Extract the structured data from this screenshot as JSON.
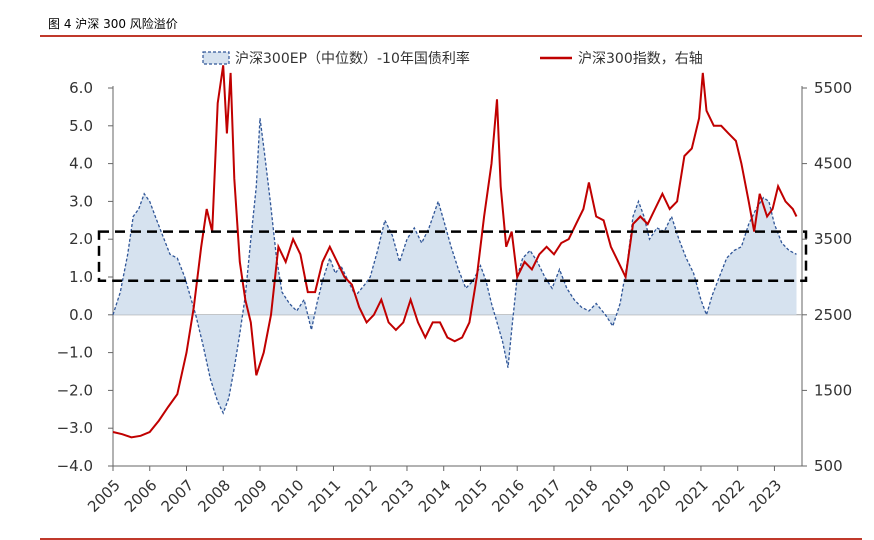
{
  "figure": {
    "title": "图 4 沪深 300 风险溢价"
  },
  "colors": {
    "ep_line": "#2f5597",
    "ep_fill": "#d6e2ef",
    "index_line": "#c00000",
    "rule": "#c0392b",
    "box": "#000000"
  },
  "chart_data": {
    "type": "line",
    "x_ticks": [
      "2005",
      "2006",
      "2007",
      "2008",
      "2009",
      "2010",
      "2011",
      "2012",
      "2013",
      "2014",
      "2015",
      "2016",
      "2017",
      "2018",
      "2019",
      "2020",
      "2021",
      "2022",
      "2023"
    ],
    "y_left": {
      "ticks": [
        "6.0",
        "5.0",
        "4.0",
        "3.0",
        "2.0",
        "1.0",
        "0.0",
        "−1.0",
        "−2.0",
        "−3.0",
        "−4.0"
      ],
      "range": [
        -4,
        6
      ]
    },
    "y_right": {
      "ticks": [
        "5500",
        "4500",
        "3500",
        "2500",
        "1500",
        "500"
      ],
      "range": [
        500,
        5500
      ]
    },
    "grid": false,
    "legend_position": "top",
    "highlight_band": {
      "y_from": 0.9,
      "y_to": 2.2,
      "style": "dashed"
    },
    "series": [
      {
        "name": "沪深300EP（中位数）-10年国债利率",
        "axis": "left",
        "style": "dashed-area",
        "points": [
          [
            2005.0,
            0.0
          ],
          [
            2005.2,
            0.6
          ],
          [
            2005.4,
            1.6
          ],
          [
            2005.55,
            2.6
          ],
          [
            2005.7,
            2.8
          ],
          [
            2005.85,
            3.2
          ],
          [
            2006.0,
            3.0
          ],
          [
            2006.15,
            2.6
          ],
          [
            2006.35,
            2.1
          ],
          [
            2006.55,
            1.6
          ],
          [
            2006.75,
            1.5
          ],
          [
            2006.95,
            1.0
          ],
          [
            2007.1,
            0.5
          ],
          [
            2007.25,
            0.0
          ],
          [
            2007.45,
            -0.8
          ],
          [
            2007.65,
            -1.7
          ],
          [
            2007.85,
            -2.3
          ],
          [
            2008.0,
            -2.6
          ],
          [
            2008.15,
            -2.2
          ],
          [
            2008.3,
            -1.4
          ],
          [
            2008.45,
            -0.5
          ],
          [
            2008.6,
            0.5
          ],
          [
            2008.75,
            2.0
          ],
          [
            2008.9,
            3.4
          ],
          [
            2009.0,
            5.2
          ],
          [
            2009.12,
            4.3
          ],
          [
            2009.28,
            3.0
          ],
          [
            2009.45,
            1.5
          ],
          [
            2009.6,
            0.6
          ],
          [
            2009.8,
            0.3
          ],
          [
            2010.0,
            0.1
          ],
          [
            2010.2,
            0.4
          ],
          [
            2010.4,
            -0.4
          ],
          [
            2010.55,
            0.3
          ],
          [
            2010.7,
            0.9
          ],
          [
            2010.9,
            1.5
          ],
          [
            2011.05,
            1.1
          ],
          [
            2011.2,
            1.3
          ],
          [
            2011.4,
            0.9
          ],
          [
            2011.6,
            0.5
          ],
          [
            2011.85,
            0.8
          ],
          [
            2012.0,
            1.0
          ],
          [
            2012.2,
            1.7
          ],
          [
            2012.4,
            2.5
          ],
          [
            2012.6,
            2.1
          ],
          [
            2012.8,
            1.4
          ],
          [
            2013.0,
            2.0
          ],
          [
            2013.2,
            2.3
          ],
          [
            2013.4,
            1.9
          ],
          [
            2013.6,
            2.3
          ],
          [
            2013.85,
            3.0
          ],
          [
            2014.0,
            2.5
          ],
          [
            2014.2,
            1.8
          ],
          [
            2014.4,
            1.2
          ],
          [
            2014.6,
            0.7
          ],
          [
            2014.8,
            0.9
          ],
          [
            2015.0,
            1.3
          ],
          [
            2015.15,
            0.9
          ],
          [
            2015.3,
            0.3
          ],
          [
            2015.45,
            -0.2
          ],
          [
            2015.6,
            -0.7
          ],
          [
            2015.75,
            -1.4
          ],
          [
            2015.85,
            -0.4
          ],
          [
            2016.0,
            1.0
          ],
          [
            2016.15,
            1.5
          ],
          [
            2016.35,
            1.7
          ],
          [
            2016.55,
            1.4
          ],
          [
            2016.75,
            1.0
          ],
          [
            2016.95,
            0.7
          ],
          [
            2017.15,
            1.2
          ],
          [
            2017.35,
            0.7
          ],
          [
            2017.55,
            0.4
          ],
          [
            2017.75,
            0.2
          ],
          [
            2017.95,
            0.1
          ],
          [
            2018.15,
            0.3
          ],
          [
            2018.4,
            0.0
          ],
          [
            2018.6,
            -0.3
          ],
          [
            2018.8,
            0.3
          ],
          [
            2019.0,
            1.4
          ],
          [
            2019.15,
            2.6
          ],
          [
            2019.3,
            3.0
          ],
          [
            2019.45,
            2.6
          ],
          [
            2019.6,
            2.0
          ],
          [
            2019.8,
            2.3
          ],
          [
            2020.0,
            2.2
          ],
          [
            2020.2,
            2.6
          ],
          [
            2020.4,
            2.0
          ],
          [
            2020.6,
            1.5
          ],
          [
            2020.8,
            1.1
          ],
          [
            2021.0,
            0.4
          ],
          [
            2021.15,
            0.0
          ],
          [
            2021.3,
            0.5
          ],
          [
            2021.5,
            1.0
          ],
          [
            2021.7,
            1.5
          ],
          [
            2021.9,
            1.7
          ],
          [
            2022.1,
            1.8
          ],
          [
            2022.3,
            2.4
          ],
          [
            2022.5,
            2.8
          ],
          [
            2022.7,
            3.1
          ],
          [
            2022.85,
            3.0
          ],
          [
            2023.0,
            2.4
          ],
          [
            2023.2,
            1.9
          ],
          [
            2023.4,
            1.7
          ],
          [
            2023.6,
            1.6
          ]
        ]
      },
      {
        "name": "沪深300指数，右轴",
        "axis": "right",
        "style": "solid",
        "points": [
          [
            2005.0,
            950
          ],
          [
            2005.25,
            920
          ],
          [
            2005.5,
            880
          ],
          [
            2005.75,
            900
          ],
          [
            2006.0,
            950
          ],
          [
            2006.25,
            1100
          ],
          [
            2006.5,
            1280
          ],
          [
            2006.75,
            1450
          ],
          [
            2007.0,
            2000
          ],
          [
            2007.2,
            2600
          ],
          [
            2007.4,
            3400
          ],
          [
            2007.55,
            3900
          ],
          [
            2007.7,
            3600
          ],
          [
            2007.85,
            5300
          ],
          [
            2008.0,
            5800
          ],
          [
            2008.1,
            4900
          ],
          [
            2008.2,
            5700
          ],
          [
            2008.3,
            4300
          ],
          [
            2008.45,
            3200
          ],
          [
            2008.6,
            2700
          ],
          [
            2008.75,
            2400
          ],
          [
            2008.9,
            1700
          ],
          [
            2009.1,
            2000
          ],
          [
            2009.3,
            2500
          ],
          [
            2009.5,
            3400
          ],
          [
            2009.7,
            3200
          ],
          [
            2009.9,
            3500
          ],
          [
            2010.1,
            3300
          ],
          [
            2010.3,
            2800
          ],
          [
            2010.5,
            2800
          ],
          [
            2010.7,
            3200
          ],
          [
            2010.9,
            3400
          ],
          [
            2011.1,
            3200
          ],
          [
            2011.3,
            3000
          ],
          [
            2011.5,
            2900
          ],
          [
            2011.7,
            2600
          ],
          [
            2011.9,
            2400
          ],
          [
            2012.1,
            2500
          ],
          [
            2012.3,
            2700
          ],
          [
            2012.5,
            2400
          ],
          [
            2012.7,
            2300
          ],
          [
            2012.9,
            2400
          ],
          [
            2013.1,
            2700
          ],
          [
            2013.3,
            2400
          ],
          [
            2013.5,
            2200
          ],
          [
            2013.7,
            2400
          ],
          [
            2013.9,
            2400
          ],
          [
            2014.1,
            2200
          ],
          [
            2014.3,
            2150
          ],
          [
            2014.5,
            2200
          ],
          [
            2014.7,
            2400
          ],
          [
            2014.9,
            3000
          ],
          [
            2015.1,
            3800
          ],
          [
            2015.3,
            4500
          ],
          [
            2015.45,
            5350
          ],
          [
            2015.55,
            4200
          ],
          [
            2015.7,
            3400
          ],
          [
            2015.85,
            3600
          ],
          [
            2016.0,
            3000
          ],
          [
            2016.2,
            3200
          ],
          [
            2016.4,
            3100
          ],
          [
            2016.6,
            3300
          ],
          [
            2016.8,
            3400
          ],
          [
            2017.0,
            3300
          ],
          [
            2017.2,
            3450
          ],
          [
            2017.4,
            3500
          ],
          [
            2017.6,
            3700
          ],
          [
            2017.8,
            3900
          ],
          [
            2017.95,
            4250
          ],
          [
            2018.15,
            3800
          ],
          [
            2018.35,
            3750
          ],
          [
            2018.55,
            3400
          ],
          [
            2018.75,
            3200
          ],
          [
            2018.95,
            3000
          ],
          [
            2019.15,
            3700
          ],
          [
            2019.35,
            3800
          ],
          [
            2019.55,
            3700
          ],
          [
            2019.75,
            3900
          ],
          [
            2019.95,
            4100
          ],
          [
            2020.15,
            3900
          ],
          [
            2020.35,
            4000
          ],
          [
            2020.55,
            4600
          ],
          [
            2020.75,
            4700
          ],
          [
            2020.95,
            5100
          ],
          [
            2021.05,
            5700
          ],
          [
            2021.15,
            5200
          ],
          [
            2021.35,
            5000
          ],
          [
            2021.55,
            5000
          ],
          [
            2021.75,
            4900
          ],
          [
            2021.95,
            4800
          ],
          [
            2022.1,
            4500
          ],
          [
            2022.3,
            4000
          ],
          [
            2022.45,
            3600
          ],
          [
            2022.6,
            4100
          ],
          [
            2022.8,
            3800
          ],
          [
            2022.95,
            3900
          ],
          [
            2023.1,
            4200
          ],
          [
            2023.3,
            4000
          ],
          [
            2023.5,
            3900
          ],
          [
            2023.6,
            3800
          ]
        ]
      }
    ]
  }
}
